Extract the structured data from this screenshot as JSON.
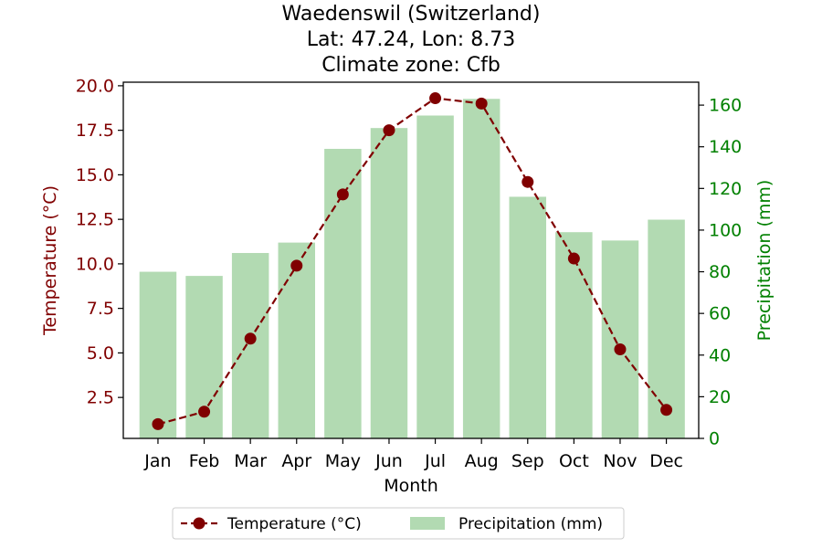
{
  "colors": {
    "temperature": "#800000",
    "precipitation": "#008000",
    "precip_bar_fill": "#b2dab2",
    "axis": "#000000"
  },
  "chart_data": {
    "type": "bar",
    "title_lines": [
      "Waedenswil (Switzerland)",
      "Lat: 47.24, Lon: 8.73",
      "Climate zone: Cfb"
    ],
    "xlabel": "Month",
    "categories": [
      "Jan",
      "Feb",
      "Mar",
      "Apr",
      "May",
      "Jun",
      "Jul",
      "Aug",
      "Sep",
      "Oct",
      "Nov",
      "Dec"
    ],
    "y_left": {
      "label": "Temperature (°C)",
      "ylim": [
        0.2,
        20.2
      ],
      "ticks": [
        2.5,
        5.0,
        7.5,
        10.0,
        12.5,
        15.0,
        17.5,
        20.0
      ],
      "tick_labels": [
        "2.5",
        "5.0",
        "7.5",
        "10.0",
        "12.5",
        "15.0",
        "17.5",
        "20.0"
      ]
    },
    "y_right": {
      "label": "Precipitation (mm)",
      "ylim": [
        0,
        171
      ],
      "ticks": [
        0,
        20,
        40,
        60,
        80,
        100,
        120,
        140,
        160
      ],
      "tick_labels": [
        "0",
        "20",
        "40",
        "60",
        "80",
        "100",
        "120",
        "140",
        "160"
      ]
    },
    "series": [
      {
        "name": "Temperature (°C)",
        "type": "line",
        "axis": "left",
        "line_style": "dashed",
        "marker": "circle",
        "values": [
          1.0,
          1.7,
          5.8,
          9.9,
          13.9,
          17.5,
          19.3,
          19.0,
          14.6,
          10.3,
          5.2,
          1.8
        ]
      },
      {
        "name": "Precipitation (mm)",
        "type": "bar",
        "axis": "right",
        "values": [
          80,
          78,
          89,
          94,
          139,
          149,
          155,
          163,
          116,
          99,
          95,
          105
        ]
      }
    ],
    "legend_placement": "bottom-center",
    "grid": false
  }
}
